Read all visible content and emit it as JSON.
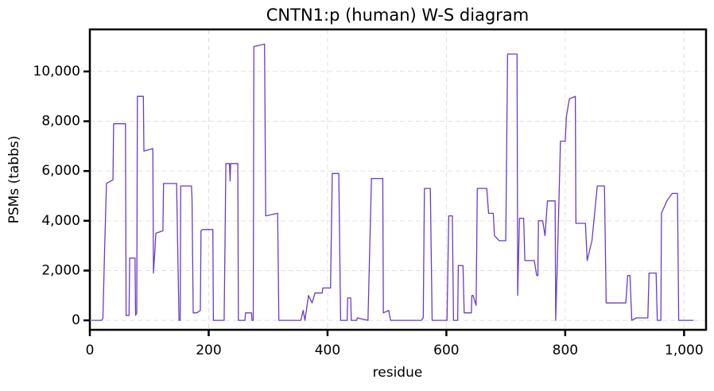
{
  "chart_data": {
    "type": "line",
    "title": "CNTN1:p (human) W-S diagram",
    "x_label": "residue",
    "y_label": "PSMs (tabbs)",
    "xlim": [
      0,
      1037
    ],
    "ylim": [
      -380,
      11690
    ],
    "xticks": [
      0,
      200,
      400,
      600,
      800,
      {
        "value": 1000,
        "label": "1,000"
      }
    ],
    "yticks": [
      0,
      {
        "value": 2000,
        "label": "2,000"
      },
      {
        "value": 4000,
        "label": "4,000"
      },
      {
        "value": 6000,
        "label": "6,000"
      },
      {
        "value": 8000,
        "label": "8,000"
      },
      {
        "value": 10000,
        "label": "10,000"
      }
    ],
    "grid": true,
    "x": [
      3,
      20,
      22,
      25,
      28,
      39,
      40,
      60,
      61,
      66,
      67,
      76,
      77,
      79,
      80,
      90,
      91,
      106,
      107,
      110,
      111,
      123,
      124,
      146,
      150,
      152,
      153,
      171,
      172,
      174,
      180,
      186,
      187,
      190,
      207,
      208,
      226,
      229,
      235,
      236,
      237,
      249,
      250,
      261,
      262,
      272,
      273,
      275,
      276,
      294,
      296,
      316,
      318,
      355,
      359,
      362,
      368,
      374,
      379,
      391,
      392,
      405,
      408,
      419,
      422,
      433,
      434,
      439,
      440,
      449,
      450,
      468,
      474,
      493,
      494,
      503,
      506,
      558,
      561,
      563,
      573,
      576,
      601,
      604,
      610,
      612,
      619,
      620,
      628,
      630,
      642,
      643,
      645,
      650,
      652,
      668,
      671,
      679,
      681,
      689,
      700,
      703,
      719,
      720,
      723,
      730,
      732,
      748,
      752,
      754,
      755,
      762,
      766,
      770,
      783,
      784,
      787,
      792,
      800,
      802,
      807,
      817,
      818,
      834,
      837,
      845,
      854,
      866,
      869,
      902,
      905,
      909,
      912,
      920,
      939,
      941,
      953,
      955,
      961,
      962,
      971,
      980,
      989,
      991,
      1016
    ],
    "series": [
      {
        "name": "PSMs",
        "color": "#6a3bc9",
        "values": [
          0,
          0,
          80,
          3000,
          5500,
          5650,
          7900,
          7900,
          200,
          200,
          2500,
          2500,
          200,
          300,
          9000,
          9000,
          6800,
          6900,
          1900,
          3000,
          3500,
          3600,
          5500,
          5500,
          0,
          0,
          5400,
          5400,
          4900,
          300,
          300,
          400,
          3600,
          3650,
          3650,
          0,
          0,
          6300,
          6300,
          5600,
          6300,
          6300,
          0,
          0,
          300,
          300,
          0,
          0,
          11000,
          11100,
          4200,
          4300,
          0,
          0,
          400,
          0,
          1000,
          700,
          1100,
          1100,
          1300,
          1300,
          5900,
          5900,
          0,
          0,
          900,
          900,
          0,
          0,
          100,
          0,
          5700,
          5700,
          300,
          400,
          0,
          0,
          100,
          5300,
          5300,
          0,
          0,
          4200,
          4200,
          0,
          0,
          2200,
          2200,
          300,
          300,
          1000,
          1000,
          600,
          5300,
          5300,
          4300,
          4300,
          3400,
          3200,
          3200,
          10700,
          10700,
          1000,
          4100,
          4100,
          2400,
          2400,
          1800,
          1800,
          4000,
          4000,
          3400,
          4800,
          4800,
          0,
          2600,
          7200,
          7200,
          8200,
          8900,
          9000,
          3900,
          3900,
          2400,
          3200,
          5400,
          5400,
          700,
          700,
          1800,
          1800,
          0,
          100,
          100,
          1900,
          1900,
          0,
          0,
          4300,
          4800,
          5100,
          5100,
          0,
          0
        ]
      }
    ]
  }
}
